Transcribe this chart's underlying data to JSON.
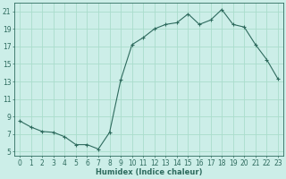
{
  "x": [
    0,
    1,
    2,
    3,
    4,
    5,
    6,
    7,
    8,
    9,
    10,
    11,
    12,
    13,
    14,
    15,
    16,
    17,
    18,
    19,
    20,
    21,
    22,
    23
  ],
  "y": [
    8.5,
    7.8,
    7.3,
    7.2,
    6.7,
    5.8,
    5.8,
    5.3,
    7.2,
    13.2,
    17.2,
    18.0,
    19.0,
    19.5,
    19.7,
    20.7,
    19.5,
    20.0,
    21.2,
    19.5,
    19.2,
    17.2,
    15.5,
    13.3
  ],
  "line_color": "#2e6b5e",
  "bg_color": "#cceee8",
  "grid_color": "#aaddcc",
  "xlabel": "Humidex (Indice chaleur)",
  "ylabel_ticks": [
    5,
    7,
    9,
    11,
    13,
    15,
    17,
    19,
    21
  ],
  "xlim": [
    -0.5,
    23.5
  ],
  "ylim": [
    4.5,
    22.0
  ],
  "xtick_labels": [
    "0",
    "1",
    "2",
    "3",
    "4",
    "5",
    "6",
    "7",
    "8",
    "9",
    "10",
    "11",
    "12",
    "13",
    "14",
    "15",
    "16",
    "17",
    "18",
    "19",
    "20",
    "21",
    "22",
    "23"
  ],
  "axis_fontsize": 5.5,
  "label_fontsize": 6.0
}
